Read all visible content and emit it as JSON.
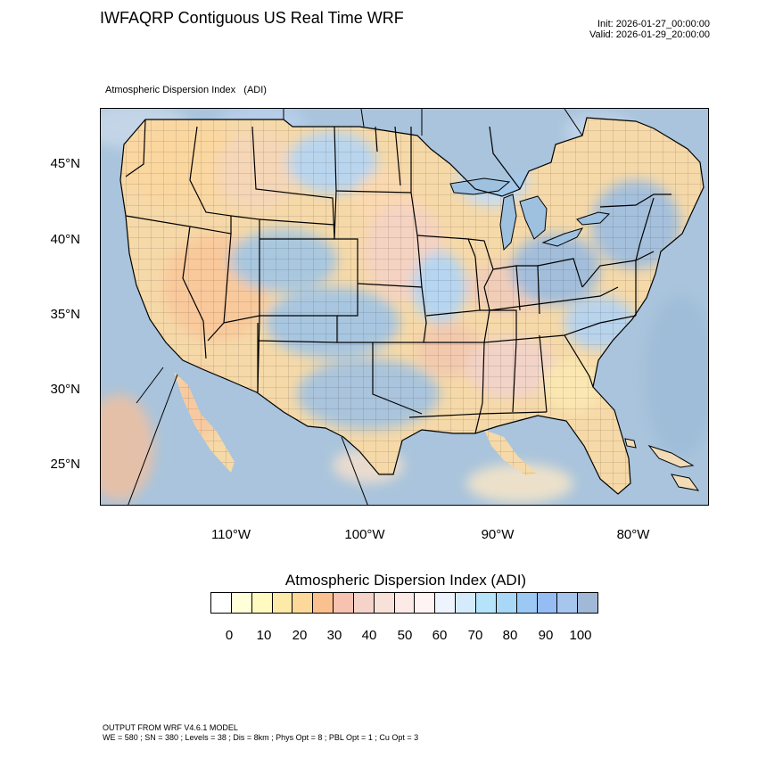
{
  "header": {
    "title": "IWFAQRP Contiguous US Real Time WRF",
    "init": "Init: 2026-01-27_00:00:00",
    "valid": "Valid: 2026-01-29_20:00:00",
    "field_name": "Atmospheric Dispersion Index   (ADI)"
  },
  "map": {
    "lat_labels": [
      "45°N",
      "40°N",
      "35°N",
      "30°N",
      "25°N"
    ],
    "lon_labels": [
      "110°W",
      "100°W",
      "90°W",
      "80°W"
    ],
    "colors": {
      "water": "#a9c4dc",
      "land_base": "#f6d9a8",
      "border": "#000000"
    }
  },
  "colorbar": {
    "title": "Atmospheric Dispersion Index  (ADI)",
    "tick_labels": [
      "0",
      "10",
      "20",
      "30",
      "40",
      "50",
      "60",
      "70",
      "80",
      "90",
      "100"
    ],
    "colors": [
      "#ffffff",
      "#ffffd9",
      "#fffbc0",
      "#fdeaa8",
      "#fcd89a",
      "#fbc090",
      "#f7c2b0",
      "#f5d3c8",
      "#f8e1d8",
      "#fbeae6",
      "#fff4f4",
      "#eef4fd",
      "#d5eafb",
      "#b5e3fa",
      "#a8d8f6",
      "#9cc9f4",
      "#96bcf4",
      "#a6c6ee",
      "#a1b9d6"
    ]
  },
  "footer": {
    "line1": "OUTPUT FROM WRF V4.6.1 MODEL",
    "line2": "WE = 580 ; SN = 380 ; Levels = 38 ; Dis = 8km ; Phys Opt = 8 ; PBL Opt = 1 ; Cu Opt = 3"
  }
}
